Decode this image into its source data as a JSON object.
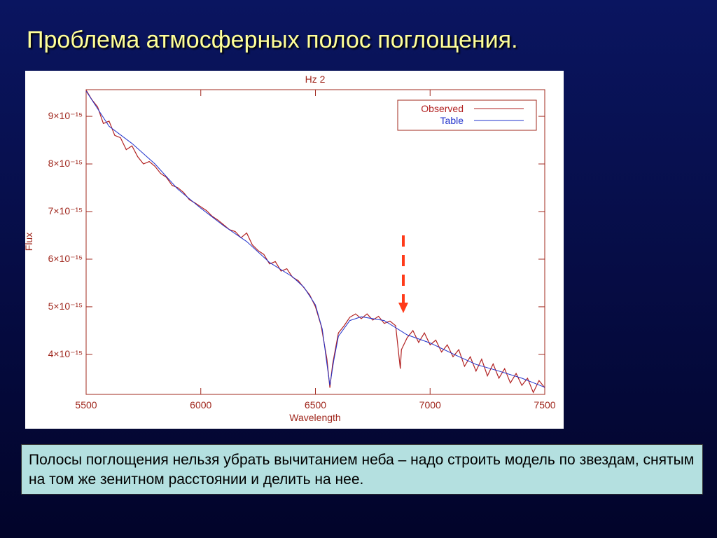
{
  "title": "Проблема атмосферных полос поглощения.",
  "chart_data": {
    "type": "line",
    "title": "Hz 2",
    "x_label": "Wavelength",
    "y_label": "Flux",
    "xlim": [
      5500,
      7500
    ],
    "xticks": [
      5500,
      6000,
      6500,
      7000,
      7500
    ],
    "ylim": [
      3.16e-15,
      9.56e-15
    ],
    "yticks": [
      {
        "value": 4e-15,
        "label": "4×10⁻¹⁵"
      },
      {
        "value": 5e-15,
        "label": "5×10⁻¹⁵"
      },
      {
        "value": 6e-15,
        "label": "6×10⁻¹⁵"
      },
      {
        "value": 7e-15,
        "label": "7×10⁻¹⁵"
      },
      {
        "value": 8e-15,
        "label": "8×10⁻¹⁵"
      },
      {
        "value": 9e-15,
        "label": "9×10⁻¹⁵"
      }
    ],
    "legend": "upper right",
    "series": [
      {
        "name": "Observed",
        "color": "#b22222",
        "x": [
          5500,
          5525,
          5550,
          5575,
          5600,
          5625,
          5650,
          5675,
          5700,
          5725,
          5750,
          5775,
          5800,
          5825,
          5850,
          5875,
          5900,
          5925,
          5950,
          5975,
          6000,
          6025,
          6050,
          6075,
          6100,
          6125,
          6150,
          6175,
          6200,
          6225,
          6250,
          6275,
          6300,
          6325,
          6350,
          6375,
          6400,
          6425,
          6450,
          6475,
          6500,
          6525,
          6550,
          6563,
          6575,
          6600,
          6625,
          6650,
          6675,
          6700,
          6725,
          6750,
          6775,
          6800,
          6825,
          6850,
          6870,
          6875,
          6900,
          6925,
          6950,
          6975,
          7000,
          7025,
          7050,
          7075,
          7100,
          7125,
          7150,
          7175,
          7200,
          7225,
          7250,
          7275,
          7300,
          7325,
          7350,
          7375,
          7400,
          7425,
          7450,
          7475,
          7500
        ],
        "values": [
          9.55e-15,
          9.35e-15,
          9.2e-15,
          8.85e-15,
          8.9e-15,
          8.6e-15,
          8.55e-15,
          8.3e-15,
          8.38e-15,
          8.15e-15,
          8e-15,
          8.05e-15,
          7.95e-15,
          7.8e-15,
          7.72e-15,
          7.55e-15,
          7.5e-15,
          7.4e-15,
          7.25e-15,
          7.18e-15,
          7.1e-15,
          7.02e-15,
          6.9e-15,
          6.82e-15,
          6.72e-15,
          6.62e-15,
          6.58e-15,
          6.45e-15,
          6.55e-15,
          6.3e-15,
          6.18e-15,
          6.1e-15,
          5.9e-15,
          5.95e-15,
          5.75e-15,
          5.8e-15,
          5.62e-15,
          5.55e-15,
          5.4e-15,
          5.25e-15,
          5e-15,
          4.6e-15,
          3.9e-15,
          3.3e-15,
          3.8e-15,
          4.45e-15,
          4.6e-15,
          4.78e-15,
          4.85e-15,
          4.75e-15,
          4.85e-15,
          4.72e-15,
          4.8e-15,
          4.65e-15,
          4.7e-15,
          4.6e-15,
          3.7e-15,
          4.1e-15,
          4.35e-15,
          4.5e-15,
          4.25e-15,
          4.45e-15,
          4.2e-15,
          4.3e-15,
          4.05e-15,
          4.2e-15,
          3.95e-15,
          4.1e-15,
          3.75e-15,
          3.95e-15,
          3.65e-15,
          3.9e-15,
          3.55e-15,
          3.8e-15,
          3.5e-15,
          3.7e-15,
          3.4e-15,
          3.6e-15,
          3.35e-15,
          3.5e-15,
          3.2e-15,
          3.45e-15,
          3.3e-15
        ]
      },
      {
        "name": "Table",
        "color": "#2233cc",
        "x": [
          5500,
          5600,
          5700,
          5800,
          5900,
          6000,
          6100,
          6200,
          6300,
          6400,
          6450,
          6500,
          6530,
          6550,
          6563,
          6580,
          6600,
          6650,
          6700,
          6800,
          6900,
          7000,
          7100,
          7200,
          7300,
          7400,
          7500
        ],
        "values": [
          9.53e-15,
          8.79e-15,
          8.43e-15,
          8e-15,
          7.47e-15,
          7.07e-15,
          6.7e-15,
          6.37e-15,
          5.93e-15,
          5.63e-15,
          5.41e-15,
          5.04e-15,
          4.53e-15,
          3.8e-15,
          3.35e-15,
          3.87e-15,
          4.38e-15,
          4.71e-15,
          4.79e-15,
          4.71e-15,
          4.41e-15,
          4.24e-15,
          4.01e-15,
          3.79e-15,
          3.65e-15,
          3.5e-15,
          3.31e-15
        ]
      }
    ]
  },
  "note": "Полосы поглощения нельзя убрать вычитанием неба – надо строить модель по звездам, снятым на том же зенитном расстоянии и делить на нее."
}
